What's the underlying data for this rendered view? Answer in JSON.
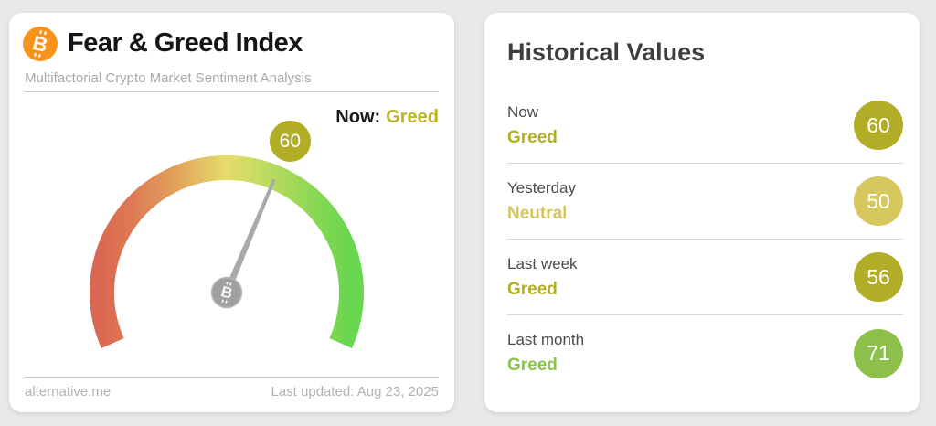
{
  "page": {
    "background_color": "#e8e8e8"
  },
  "colors": {
    "bitcoin_orange": "#f7931a",
    "needle_gray": "#a9a9a9",
    "hub_gray": "#9f9f9f",
    "greed_olive": "#b3ae24",
    "now_greed_yellow": "#bcb41c",
    "neutral_yellow": "#d7c45c",
    "greed_green": "#8bc34a",
    "gauge_gradient": [
      "#db6852",
      "#dd7a54",
      "#e2a35c",
      "#e6dd6c",
      "#b8da5e",
      "#8ad854",
      "#68d64f"
    ]
  },
  "fear_greed_card": {
    "title": "Fear & Greed Index",
    "subtitle": "Multifactorial Crypto Market Sentiment Analysis",
    "now_label": "Now:",
    "now_classification": "Greed",
    "gauge_badge_value": "60",
    "gauge_badge_color": "#b2ad26",
    "footer_source": "alternative.me",
    "footer_updated": "Last updated: Aug 23, 2025"
  },
  "historical_card": {
    "title": "Historical Values",
    "rows": [
      {
        "label": "Now",
        "classification": "Greed",
        "value": "60",
        "badge_color": "#b2ad26",
        "text_color": "#b3ae24"
      },
      {
        "label": "Yesterday",
        "classification": "Neutral",
        "value": "50",
        "badge_color": "#d7c75f",
        "text_color": "#d7c45c"
      },
      {
        "label": "Last week",
        "classification": "Greed",
        "value": "56",
        "badge_color": "#b2ad26",
        "text_color": "#b3ae24"
      },
      {
        "label": "Last month",
        "classification": "Greed",
        "value": "71",
        "badge_color": "#8dc04b",
        "text_color": "#8bc34a"
      }
    ]
  },
  "chart_data": {
    "type": "gauge",
    "title": "Fear & Greed Index",
    "value": 60,
    "classification": "Greed",
    "range": [
      0,
      100
    ],
    "sweep_deg": 228,
    "scale_colors": "red (fear, 0) through yellow (neutral, 50) to green (greed, 100)",
    "historical": [
      {
        "period": "Now",
        "classification": "Greed",
        "value": 60
      },
      {
        "period": "Yesterday",
        "classification": "Neutral",
        "value": 50
      },
      {
        "period": "Last week",
        "classification": "Greed",
        "value": 56
      },
      {
        "period": "Last month",
        "classification": "Greed",
        "value": 71
      }
    ]
  }
}
